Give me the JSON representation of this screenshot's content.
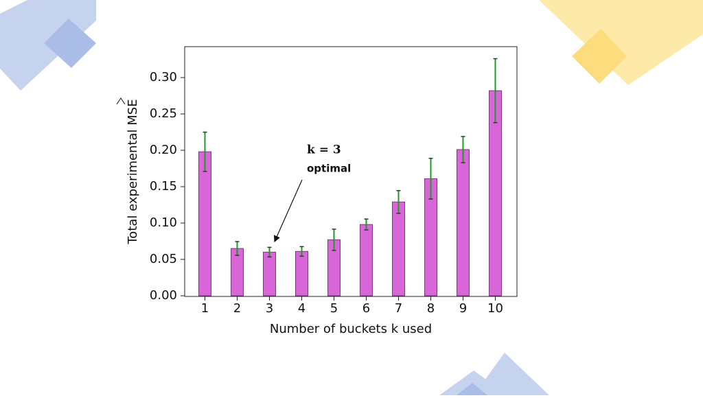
{
  "chart_data": {
    "type": "bar",
    "y_label": "Total experimental MSE",
    "x_label": "Number of buckets k used",
    "annotations": [
      "k = 3",
      "optimal"
    ],
    "categories": [
      "1",
      "2",
      "3",
      "4",
      "5",
      "6",
      "7",
      "8",
      "9",
      "10"
    ],
    "values": [
      0.198,
      0.065,
      0.06,
      0.061,
      0.077,
      0.098,
      0.129,
      0.161,
      0.201,
      0.282
    ],
    "errors": [
      0.027,
      0.0095,
      0.0066,
      0.0066,
      0.0146,
      0.0075,
      0.0156,
      0.028,
      0.018,
      0.044
    ],
    "color": "#d966d9",
    "error_color": "#1f9a1f",
    "ylim": [
      0,
      0.3425
    ],
    "yticks": [
      {
        "value": 0,
        "label": "0.00"
      },
      {
        "value": 0.05,
        "label": "0.05"
      },
      {
        "value": 0.1,
        "label": "0.10"
      },
      {
        "value": 0.15,
        "label": "0.15"
      },
      {
        "value": 0.2,
        "label": "0.20"
      },
      {
        "value": 0.25,
        "label": "0.25"
      },
      {
        "value": 0.3,
        "label": "0.30"
      }
    ],
    "grid": false
  }
}
